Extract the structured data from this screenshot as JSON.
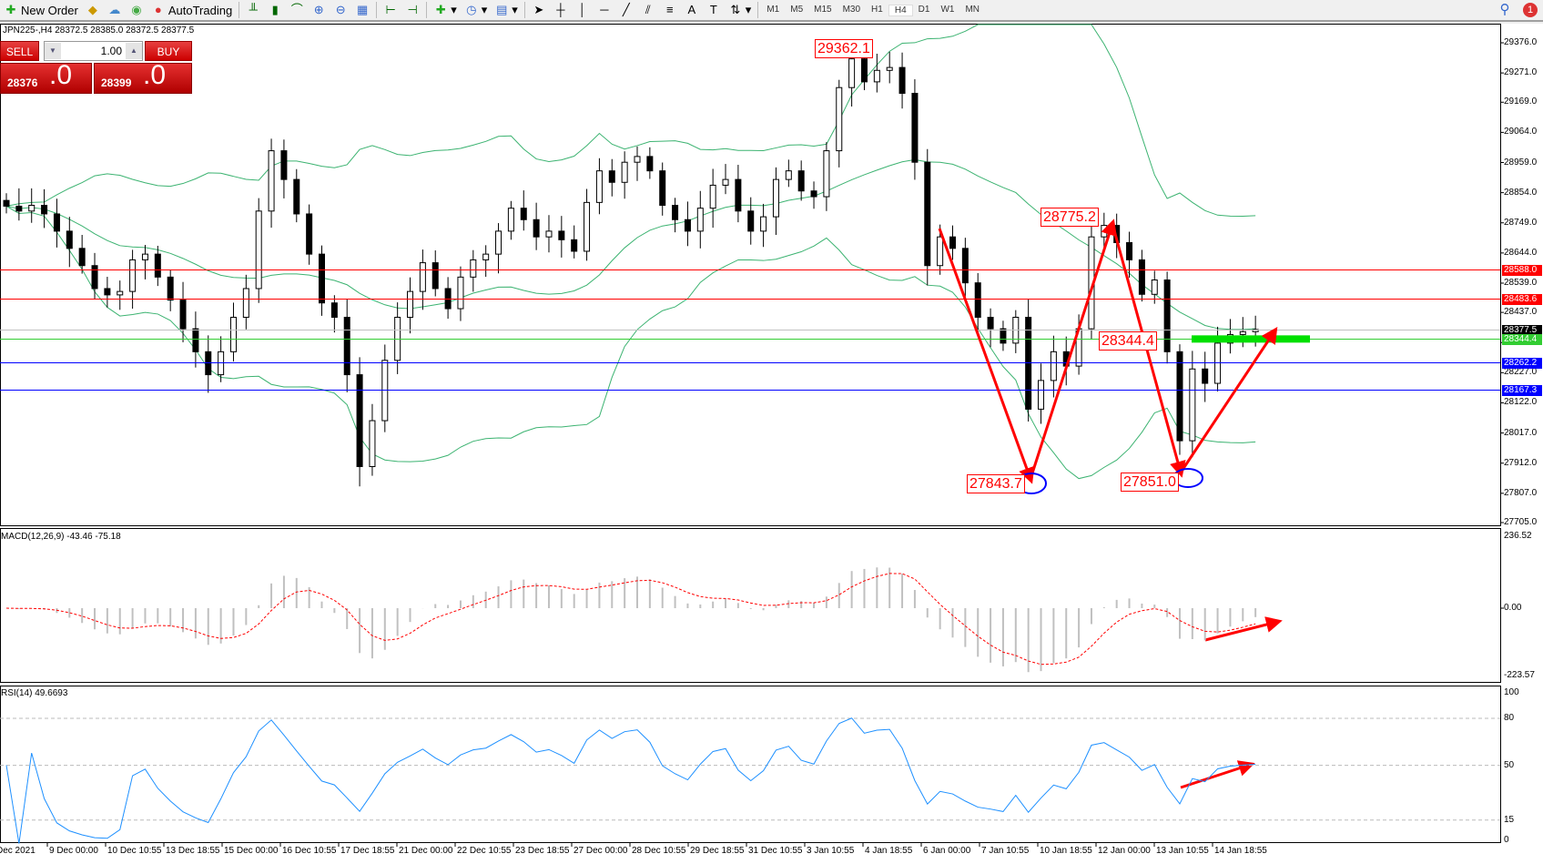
{
  "toolbar": {
    "new_order": "New Order",
    "autotrading": "AutoTrading",
    "timeframes": [
      "M1",
      "M5",
      "M15",
      "M30",
      "H1",
      "H4",
      "D1",
      "W1",
      "MN"
    ],
    "active_timeframe": "H4",
    "notification_count": "1"
  },
  "chart": {
    "symbol_line": "JPN225-,H4  28372.5 28385.0 28372.5 28377.5",
    "trade_panel": {
      "sell_label": "SELL",
      "buy_label": "BUY",
      "lot": "1.00",
      "sell_small": "28376",
      "sell_big": ".0",
      "buy_small": "28399",
      "buy_big": ".0"
    },
    "price_axis": [
      "29376.0",
      "29271.0",
      "29169.0",
      "29064.0",
      "28959.0",
      "28854.0",
      "28749.0",
      "28644.0",
      "28539.0",
      "28437.0",
      "28332.0",
      "28227.0",
      "28122.0",
      "28017.0",
      "27912.0",
      "27807.0",
      "27705.0"
    ],
    "price_scale": {
      "top": 29376,
      "bottom": 27705
    },
    "levels": [
      {
        "value": "28588.0",
        "color": "#ff0000"
      },
      {
        "value": "28483.6",
        "color": "#ff0000"
      },
      {
        "value": "28377.5",
        "color": "#000000",
        "line": "#c0c0c0"
      },
      {
        "value": "28344.4",
        "color": "#32cd32"
      },
      {
        "value": "28262.2",
        "color": "#0000ff"
      },
      {
        "value": "28167.3",
        "color": "#0000ff"
      }
    ],
    "annotations": [
      "29362.1",
      "28775.2",
      "28344.4",
      "27843.7",
      "27851.0"
    ],
    "closes": [
      28807,
      28790,
      28810,
      28780,
      28720,
      28660,
      28600,
      28520,
      28498,
      28510,
      28620,
      28640,
      28560,
      28480,
      28380,
      28300,
      28220,
      28300,
      28420,
      28520,
      28790,
      29000,
      28900,
      28780,
      28640,
      28470,
      28420,
      28220,
      27900,
      28060,
      28270,
      28420,
      28510,
      28610,
      28520,
      28450,
      28560,
      28620,
      28640,
      28720,
      28800,
      28760,
      28700,
      28720,
      28690,
      28650,
      28820,
      28930,
      28890,
      28960,
      28980,
      28930,
      28810,
      28760,
      28720,
      28800,
      28880,
      28900,
      28790,
      28720,
      28770,
      28900,
      28930,
      28860,
      28840,
      29000,
      29220,
      29320,
      29240,
      29280,
      29290,
      29200,
      28960,
      28600,
      28700,
      28660,
      28540,
      28420,
      28380,
      28330,
      28420,
      28100,
      28200,
      28300,
      28250,
      28380,
      28700,
      28740,
      28680,
      28620,
      28500,
      28550,
      28300,
      27990,
      28240,
      28190,
      28330,
      28360,
      28370,
      28377.5
    ],
    "bands_color": "#3cb371",
    "bullish_color": "#ffffff",
    "bearish_color": "#000000"
  },
  "macd": {
    "label": "MACD(12,26,9) -43.46 -75.18",
    "axis": [
      "236.52",
      "0.00",
      "-223.57"
    ],
    "histogram_color": "#c0c0c0",
    "signal_color": "#ff0000"
  },
  "rsi": {
    "label": "RSI(14) 49.6693",
    "axis": [
      "100",
      "80",
      "50",
      "15",
      "0"
    ],
    "levels": [
      80,
      50,
      15
    ],
    "line_color": "#1e90ff"
  },
  "time_axis": [
    "Dec 2021",
    "9 Dec 00:00",
    "10 Dec 10:55",
    "13 Dec 18:55",
    "15 Dec 00:00",
    "16 Dec 10:55",
    "17 Dec 18:55",
    "21 Dec 00:00",
    "22 Dec 10:55",
    "23 Dec 18:55",
    "27 Dec 00:00",
    "28 Dec 10:55",
    "29 Dec 18:55",
    "31 Dec 10:55",
    "3 Jan 10:55",
    "4 Jan 18:55",
    "6 Jan 00:00",
    "7 Jan 10:55",
    "10 Jan 18:55",
    "12 Jan 00:00",
    "13 Jan 10:55",
    "14 Jan 18:55"
  ]
}
